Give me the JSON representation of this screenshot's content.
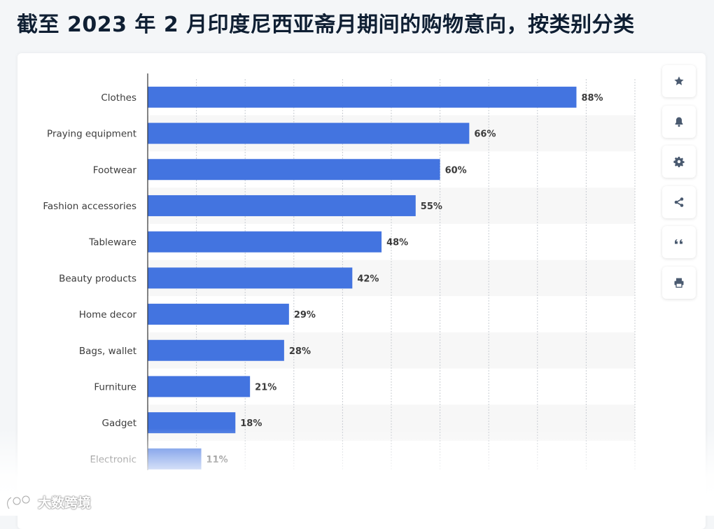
{
  "page": {
    "title": "截至 2023 年 2 月印度尼西亚斋月期间的购物意向，按类别分类"
  },
  "toolbar": {
    "buttons": [
      {
        "name": "star-button",
        "icon": "star-icon"
      },
      {
        "name": "notification-button",
        "icon": "bell-icon"
      },
      {
        "name": "settings-button",
        "icon": "gear-icon"
      },
      {
        "name": "share-button",
        "icon": "share-icon"
      },
      {
        "name": "cite-button",
        "icon": "quote-icon"
      },
      {
        "name": "print-button",
        "icon": "print-icon"
      }
    ]
  },
  "watermark": {
    "text": "大数跨境"
  },
  "colors": {
    "bar": "#4374e0",
    "grid": "#c8ccd2",
    "alt_band": "#f7f7f7",
    "title": "#0f1f33"
  },
  "chart_data": {
    "type": "bar",
    "orientation": "horizontal",
    "categories": [
      "Clothes",
      "Praying equipment",
      "Footwear",
      "Fashion accessories",
      "Tableware",
      "Beauty products",
      "Home decor",
      "Bags, wallet",
      "Furniture",
      "Gadget",
      "Electronic"
    ],
    "values": [
      88,
      66,
      60,
      55,
      48,
      42,
      29,
      28,
      21,
      18,
      11
    ],
    "value_labels": [
      "88%",
      "66%",
      "60%",
      "55%",
      "48%",
      "42%",
      "29%",
      "28%",
      "21%",
      "18%",
      "11%"
    ],
    "xlim": [
      0,
      100
    ],
    "grid": true,
    "legend": "none"
  }
}
